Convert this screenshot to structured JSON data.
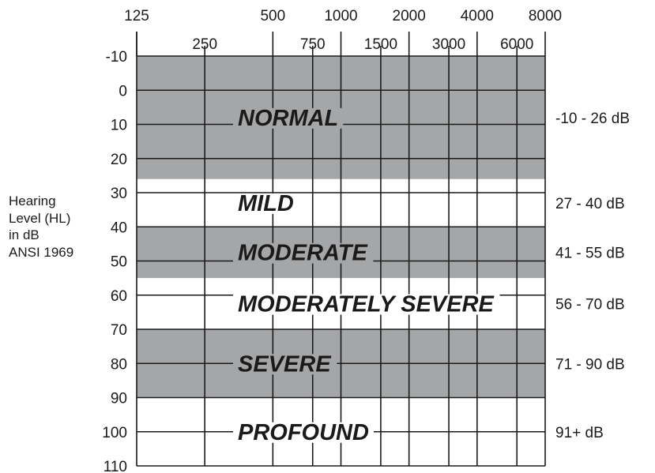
{
  "chart_data": {
    "type": "audiogram",
    "x_axis": {
      "scale": "log",
      "top_ticks": [
        "125",
        "500",
        "1000",
        "2000",
        "4000",
        "8000"
      ],
      "inner_ticks": [
        "250",
        "750",
        "1500",
        "3000",
        "6000"
      ],
      "range": [
        125,
        8000
      ]
    },
    "y_axis": {
      "ticks": [
        "-10",
        "0",
        "10",
        "20",
        "30",
        "40",
        "50",
        "60",
        "70",
        "80",
        "90",
        "100",
        "110"
      ],
      "range": [
        -10,
        110
      ],
      "inverted": true,
      "label_lines": [
        "Hearing",
        "Level (HL)",
        "in dB",
        "ANSI 1969"
      ]
    },
    "grid": true,
    "bands": [
      {
        "label": "NORMAL",
        "from_db": -10,
        "to_db": 26,
        "range_label": "-10 - 26 dB",
        "shaded": true
      },
      {
        "label": "MILD",
        "from_db": 26,
        "to_db": 40,
        "range_label": "27 - 40 dB",
        "shaded": false
      },
      {
        "label": "MODERATE",
        "from_db": 40,
        "to_db": 55,
        "range_label": "41 - 55 dB",
        "shaded": true
      },
      {
        "label": "MODERATELY SEVERE",
        "from_db": 55,
        "to_db": 70,
        "range_label": "56 - 70 dB",
        "shaded": false
      },
      {
        "label": "SEVERE",
        "from_db": 70,
        "to_db": 90,
        "range_label": "71 - 90 dB",
        "shaded": true
      },
      {
        "label": "PROFOUND",
        "from_db": 90,
        "to_db": 110,
        "range_label": "91+ dB",
        "shaded": false
      }
    ],
    "colors": {
      "shade": "#a5a6a8",
      "line": "#1a1a1a",
      "background": "#ffffff"
    }
  }
}
